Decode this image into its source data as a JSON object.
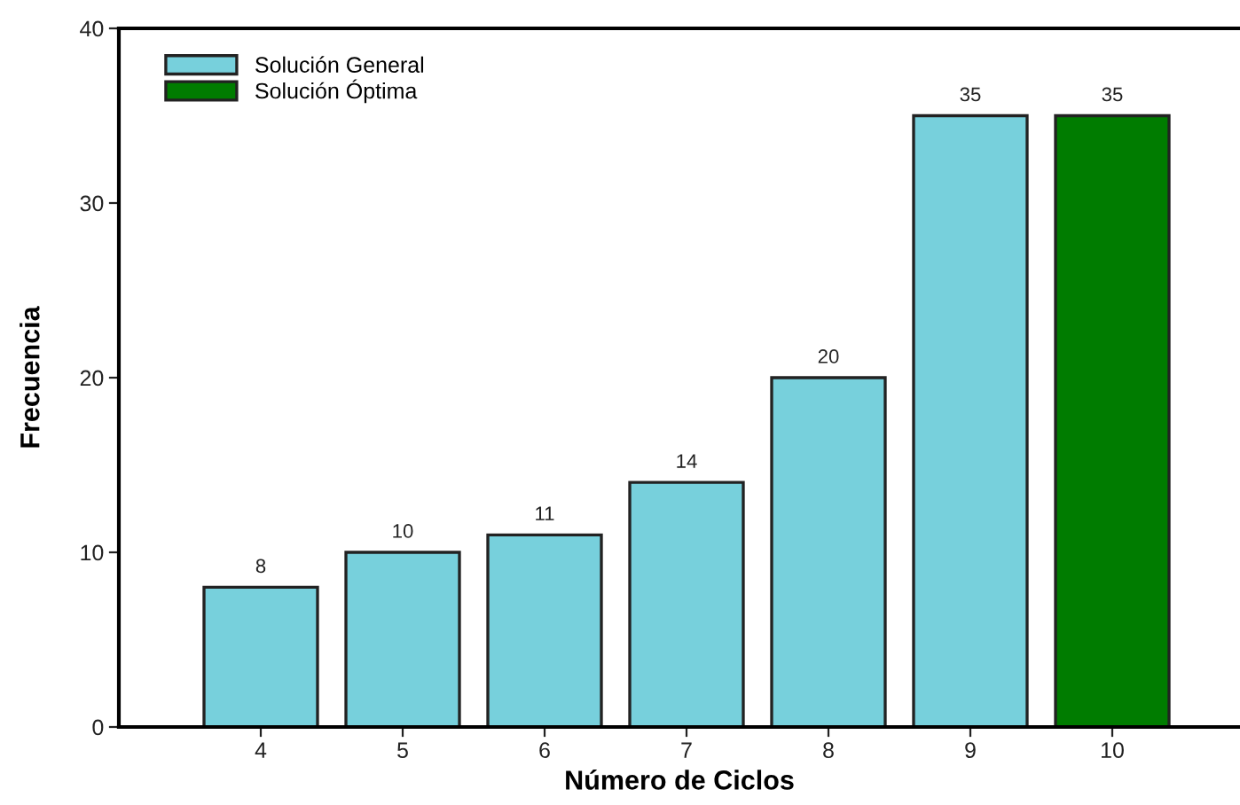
{
  "chart_data": {
    "type": "bar",
    "xlabel": "Número de Ciclos",
    "ylabel": "Frecuencia",
    "categories": [
      "4",
      "5",
      "6",
      "7",
      "8",
      "9",
      "10"
    ],
    "series": [
      {
        "name": "Solución General",
        "color": "#77d0dc",
        "values": [
          8,
          10,
          11,
          14,
          20,
          35,
          null
        ]
      },
      {
        "name": "Solución Óptima",
        "color": "#007c00",
        "values": [
          null,
          null,
          null,
          null,
          null,
          null,
          35
        ]
      }
    ],
    "ylim": [
      0,
      40
    ],
    "yticks": [
      0,
      10,
      20,
      30,
      40
    ],
    "grid": false,
    "legend": "top left",
    "data_labels": true
  }
}
